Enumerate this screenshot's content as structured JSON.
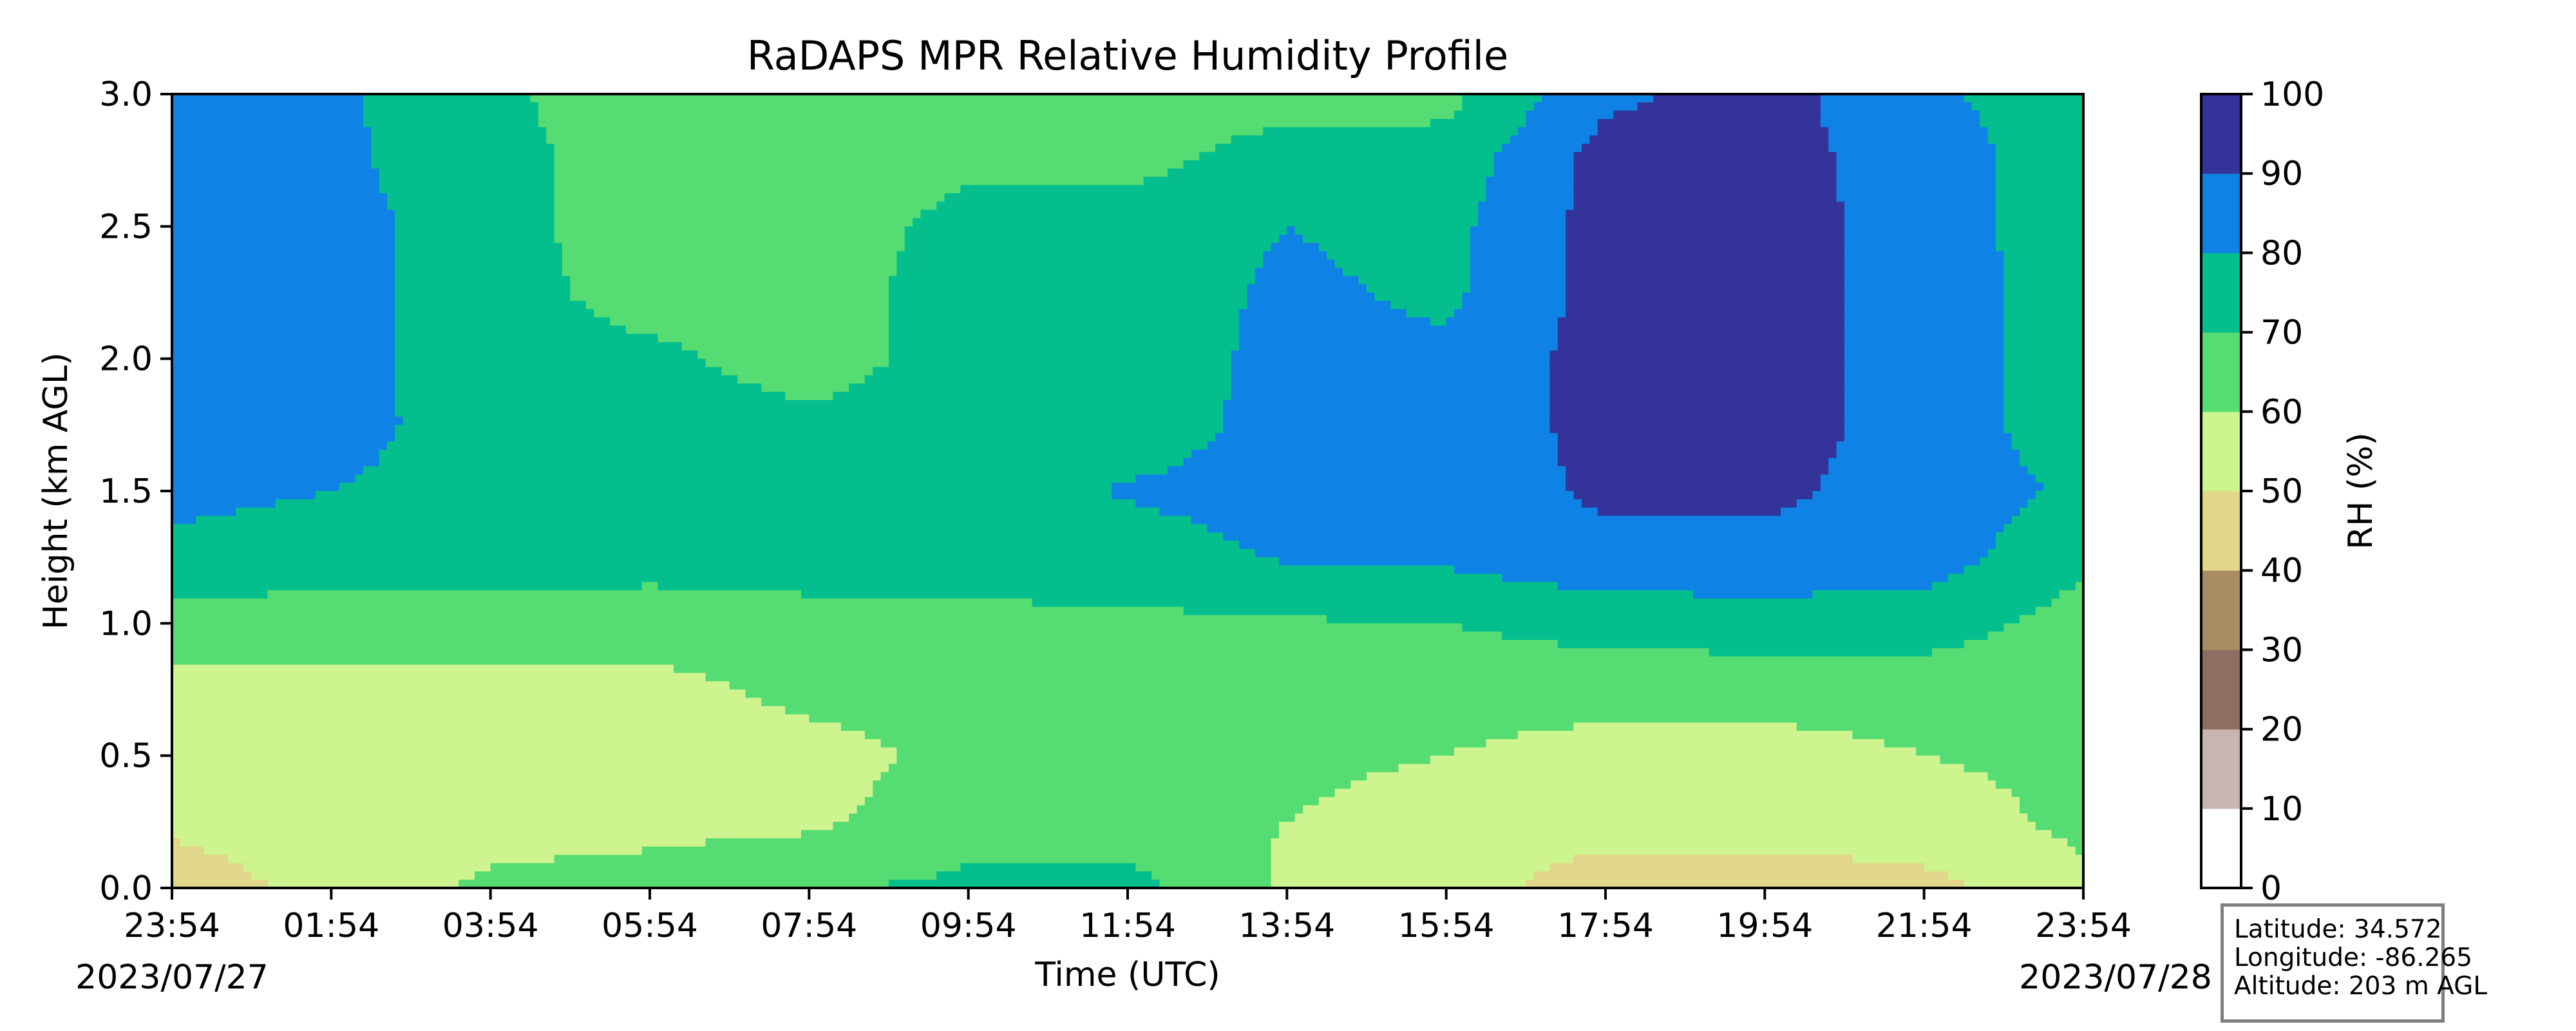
{
  "chart_data": {
    "type": "heatmap",
    "title": "RaDAPS MPR Relative Humidity Profile",
    "xlabel": "Time (UTC)",
    "ylabel": "Height (km AGL)",
    "colorbar_label": "RH (%)",
    "x_tick_labels": [
      "23:54",
      "01:54",
      "03:54",
      "05:54",
      "07:54",
      "09:54",
      "11:54",
      "13:54",
      "15:54",
      "17:54",
      "19:54",
      "21:54",
      "23:54"
    ],
    "date_start": "2023/07/27",
    "date_end": "2023/07/28",
    "y_ticks": [
      "0.0",
      "0.5",
      "1.0",
      "1.5",
      "2.0",
      "2.5",
      "3.0"
    ],
    "ylim": [
      0,
      3
    ],
    "xlim_hours": [
      0,
      24
    ],
    "levels": [
      0,
      10,
      20,
      30,
      40,
      50,
      60,
      70,
      80,
      90,
      100
    ],
    "level_labels": [
      "0",
      "10",
      "20",
      "30",
      "40",
      "50",
      "60",
      "70",
      "80",
      "90",
      "100"
    ],
    "colors": [
      "#ffffff",
      "#c8b4b0",
      "#8e6e63",
      "#a88c62",
      "#e2d68a",
      "#cdf48e",
      "#55dc72",
      "#04be8e",
      "#0f83e5",
      "#333399"
    ],
    "grid": false,
    "rh_profile": {
      "height_km": [
        0.0,
        0.25,
        0.5,
        0.75,
        1.0,
        1.25,
        1.5,
        1.75,
        2.0,
        2.25,
        2.5,
        2.75,
        3.0
      ],
      "time_hours": [
        0,
        2,
        4,
        6,
        8,
        10,
        12,
        14,
        16,
        18,
        20,
        22,
        24
      ],
      "rh_percent": [
        [
          45,
          53,
          62,
          64,
          69,
          72,
          74,
          58,
          55,
          44,
          45,
          47,
          58
        ],
        [
          52,
          55,
          56,
          57,
          58,
          66,
          64,
          60,
          56,
          55,
          54,
          56,
          62
        ],
        [
          52,
          55,
          55,
          55,
          56,
          63,
          62,
          62,
          60,
          56,
          56,
          60,
          62
        ],
        [
          57,
          57,
          57,
          56,
          63,
          64,
          65,
          64,
          64,
          64,
          64,
          64,
          65
        ],
        [
          66,
          66,
          66,
          66,
          67,
          68,
          68,
          69,
          70,
          74,
          75,
          75,
          66
        ],
        [
          77,
          74,
          75,
          73,
          74,
          74,
          75,
          81,
          82,
          87,
          87,
          85,
          72
        ],
        [
          83,
          80,
          77,
          76,
          74,
          74,
          81,
          84,
          83,
          92,
          92,
          86,
          78
        ],
        [
          84,
          83,
          76,
          74,
          72,
          74,
          74,
          84,
          82,
          94,
          94,
          86,
          74
        ],
        [
          84,
          84,
          74,
          72,
          66,
          74,
          74,
          83,
          82,
          94,
          94,
          86,
          74
        ],
        [
          84,
          84,
          74,
          66,
          66,
          74,
          74,
          82,
          78,
          94,
          94,
          86,
          74
        ],
        [
          84,
          84,
          74,
          64,
          65,
          73,
          74,
          80,
          77,
          94,
          94,
          86,
          73
        ],
        [
          84,
          82,
          74,
          64,
          64,
          68,
          67,
          74,
          74,
          94,
          94,
          85,
          74
        ],
        [
          84,
          82,
          72,
          64,
          63,
          64,
          68,
          66,
          67,
          88,
          94,
          82,
          74
        ]
      ]
    }
  },
  "info_box": {
    "latitude": "Latitude: 34.572",
    "longitude": "Longitude: -86.265",
    "altitude": "Altitude: 203 m AGL"
  }
}
